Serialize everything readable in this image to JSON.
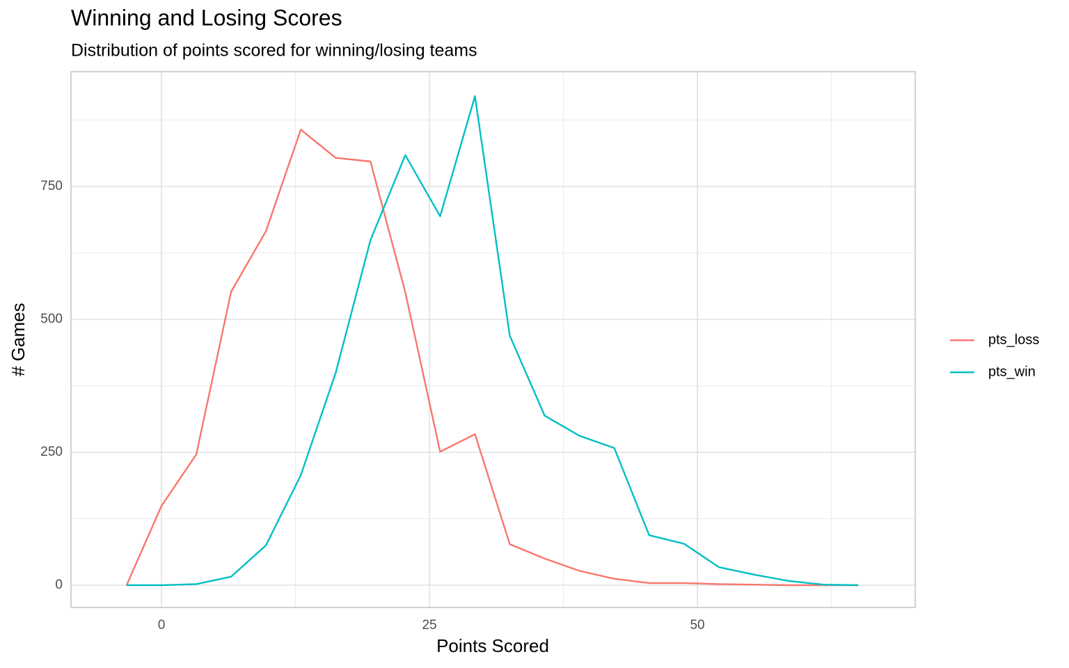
{
  "chart_data": {
    "type": "line",
    "title": "Winning and Losing Scores",
    "subtitle": "Distribution of points scored for winning/losing teams",
    "x_label": "Points Scored",
    "y_label": "# Games",
    "x": [
      -3.25,
      0,
      3.25,
      6.5,
      9.75,
      13,
      16.25,
      19.5,
      22.75,
      26,
      29.25,
      32.5,
      35.75,
      39,
      42.25,
      45.5,
      48.75,
      52,
      55.25,
      58.5,
      61.75,
      65
    ],
    "series": [
      {
        "name": "pts_loss",
        "color": "#F8766D",
        "values": [
          0,
          149,
          246,
          552,
          666,
          857,
          804,
          797,
          551,
          251,
          284,
          77,
          50,
          27,
          12,
          4,
          4,
          2,
          1,
          0,
          0,
          0
        ]
      },
      {
        "name": "pts_win",
        "color": "#00BFC4",
        "values": [
          0,
          0,
          2,
          16,
          75,
          207,
          399,
          649,
          809,
          694,
          920,
          469,
          319,
          281,
          258,
          94,
          78,
          34,
          20,
          8,
          1,
          0
        ]
      }
    ],
    "xlim": [
      -8.44,
      70.32
    ],
    "ylim": [
      -41.9,
      966
    ],
    "xticks": [
      0,
      25,
      50
    ],
    "yticks": [
      0,
      250,
      500,
      750
    ],
    "x_minor_ticks": [
      12.5,
      37.5,
      62.5
    ],
    "y_minor_ticks": [
      125,
      375,
      625,
      875
    ],
    "grid": true,
    "legend": "right"
  }
}
